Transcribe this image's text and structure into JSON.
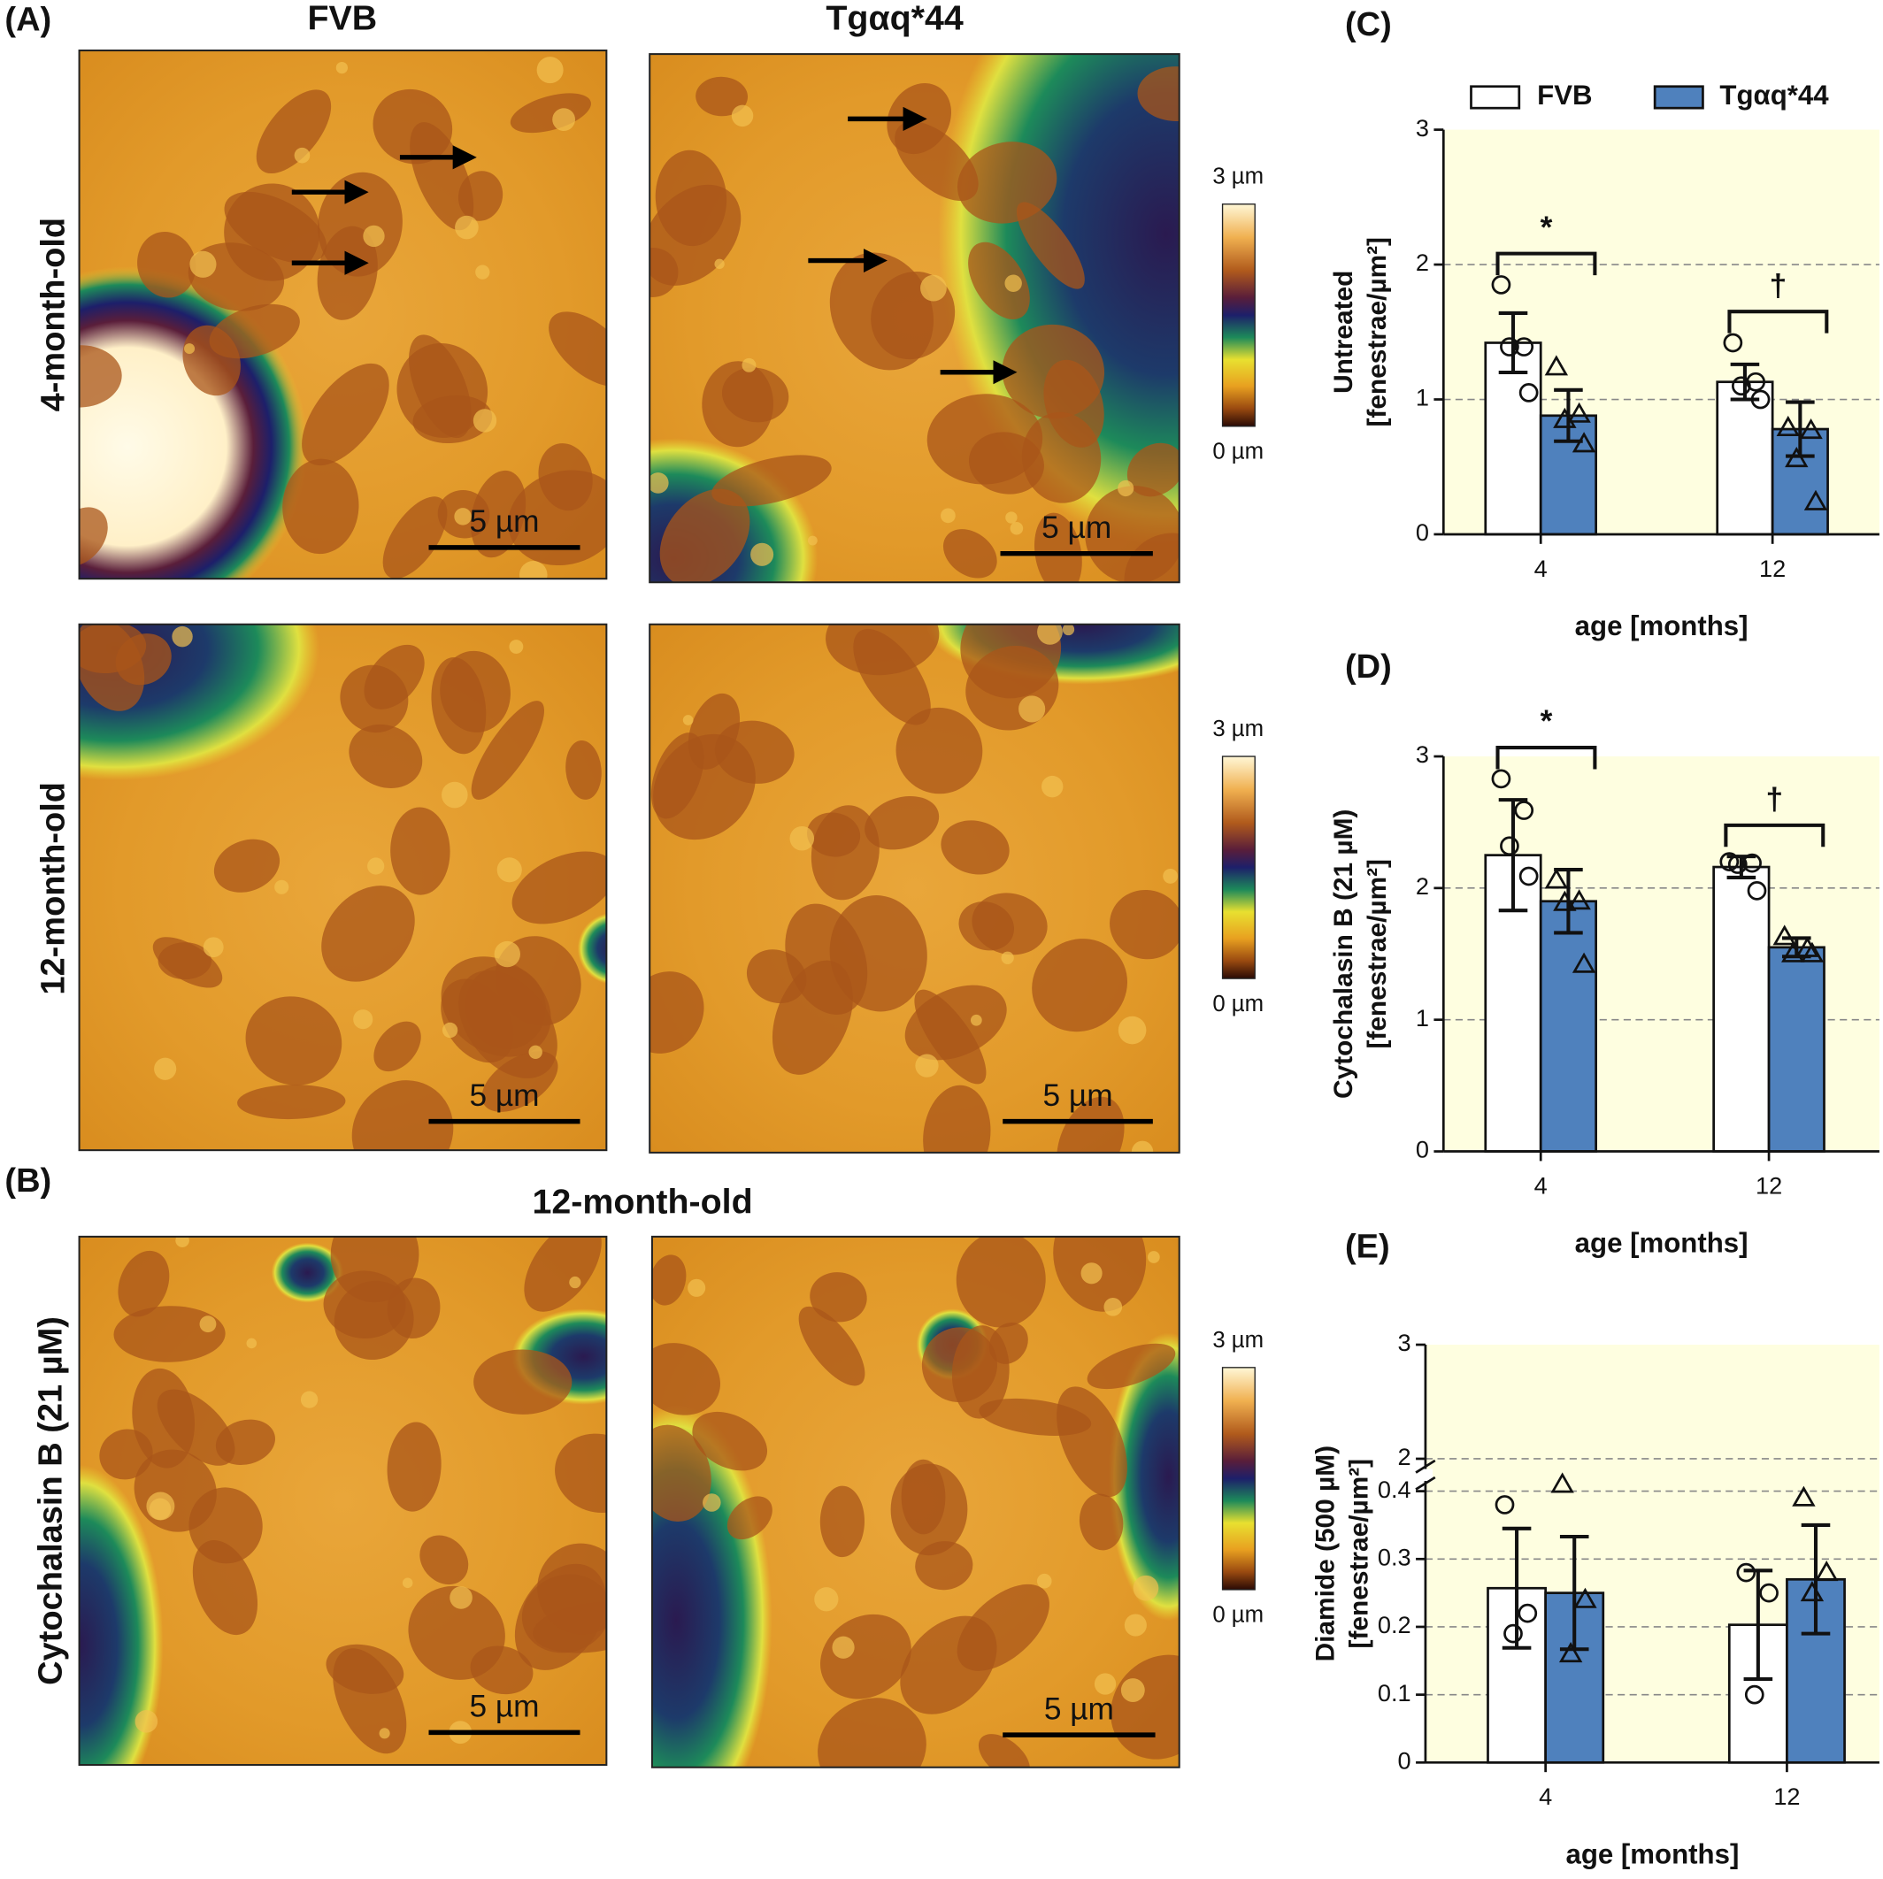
{
  "figure": {
    "panel_labels": [
      "(A)",
      "(B)",
      "(C)",
      "(D)",
      "(E)"
    ],
    "column_titles": [
      "FVB",
      "Tgαq*44"
    ],
    "row_labels": [
      "4-month-old",
      "12-month-old",
      "Cytochalasin B (21 µM)"
    ],
    "section_title": "12-month-old",
    "colorbars": [
      {
        "max": "3 µm",
        "min": "0 µm"
      },
      {
        "max": "3 µm",
        "min": "0 µm"
      },
      {
        "max": "3 µm",
        "min": "0 µm"
      }
    ],
    "scale_bar_labels": [
      "5 µm",
      "5 µm",
      "5 µm",
      "5 µm",
      "5 µm",
      "5 µm"
    ]
  },
  "chart_data": [
    {
      "type": "bar",
      "legend": true,
      "ylabel": [
        "Untreated",
        "[fenestrae/µm²]"
      ],
      "xlabel": "age [months]",
      "categories": [
        "4",
        "12"
      ],
      "series": [
        {
          "name": "FVB",
          "color": "#ffffff",
          "marker": "circle",
          "values": [
            1.42,
            1.13
          ],
          "errors": [
            0.22,
            0.13
          ],
          "points": [
            [
              1.85,
              1.39,
              1.39,
              1.05
            ],
            [
              1.42,
              1.13,
              1.1,
              1.0
            ]
          ]
        },
        {
          "name": "Tgαq*44",
          "color": "#4f81bd",
          "marker": "triangle",
          "values": [
            0.88,
            0.78
          ],
          "errors": [
            0.19,
            0.2
          ],
          "points": [
            [
              1.24,
              0.89,
              0.85,
              0.67
            ],
            [
              0.79,
              0.77,
              0.56,
              0.24
            ]
          ]
        }
      ],
      "annotations": [
        "*",
        "†"
      ],
      "ylim": [
        0,
        3
      ],
      "yticks": [
        0,
        1,
        2,
        3
      ],
      "grid": true
    },
    {
      "type": "bar",
      "legend": false,
      "ylabel": [
        "Cytochalasin B (21 µM)",
        "[fenestrae/µm²]"
      ],
      "xlabel": "age [months]",
      "categories": [
        "4",
        "12"
      ],
      "series": [
        {
          "name": "FVB",
          "color": "#ffffff",
          "marker": "circle",
          "values": [
            2.25,
            2.16
          ],
          "errors": [
            0.42,
            0.08
          ],
          "points": [
            [
              2.83,
              2.59,
              2.32,
              2.09
            ],
            [
              2.2,
              2.19,
              2.18,
              1.98
            ]
          ]
        },
        {
          "name": "Tgαq*44",
          "color": "#4f81bd",
          "marker": "triangle",
          "values": [
            1.9,
            1.55
          ],
          "errors": [
            0.24,
            0.07
          ],
          "points": [
            [
              2.06,
              1.9,
              1.89,
              1.42
            ],
            [
              1.63,
              1.54,
              1.5,
              1.5
            ]
          ]
        }
      ],
      "annotations": [
        "*",
        "†"
      ],
      "ylim": [
        0,
        3
      ],
      "yticks": [
        0,
        1,
        2,
        3
      ],
      "grid": true
    },
    {
      "type": "bar",
      "legend": false,
      "ylabel": [
        "Diamide (500 µM)",
        "[fenestrae/µm²]"
      ],
      "xlabel": "age [months]",
      "categories": [
        "4",
        "12"
      ],
      "series": [
        {
          "name": "FVB",
          "color": "#ffffff",
          "marker": "circle",
          "values": [
            0.257,
            0.203
          ],
          "errors": [
            0.088,
            0.08
          ],
          "points": [
            [
              0.38,
              0.22,
              0.19
            ],
            [
              0.28,
              0.25,
              0.1
            ]
          ]
        },
        {
          "name": "Tgαq*44",
          "color": "#4f81bd",
          "marker": "triangle",
          "values": [
            0.25,
            0.27
          ],
          "errors": [
            0.083,
            0.08
          ],
          "points": [
            [
              0.41,
              0.24,
              0.16
            ],
            [
              0.39,
              0.28,
              0.25
            ]
          ]
        }
      ],
      "ylim": [
        0,
        0.4
      ],
      "yticks": [
        0,
        0.1,
        0.2,
        0.3,
        0.4
      ],
      "ylim_upper": [
        2,
        3
      ],
      "yticks_upper": [
        2,
        3
      ],
      "grid": true
    }
  ]
}
